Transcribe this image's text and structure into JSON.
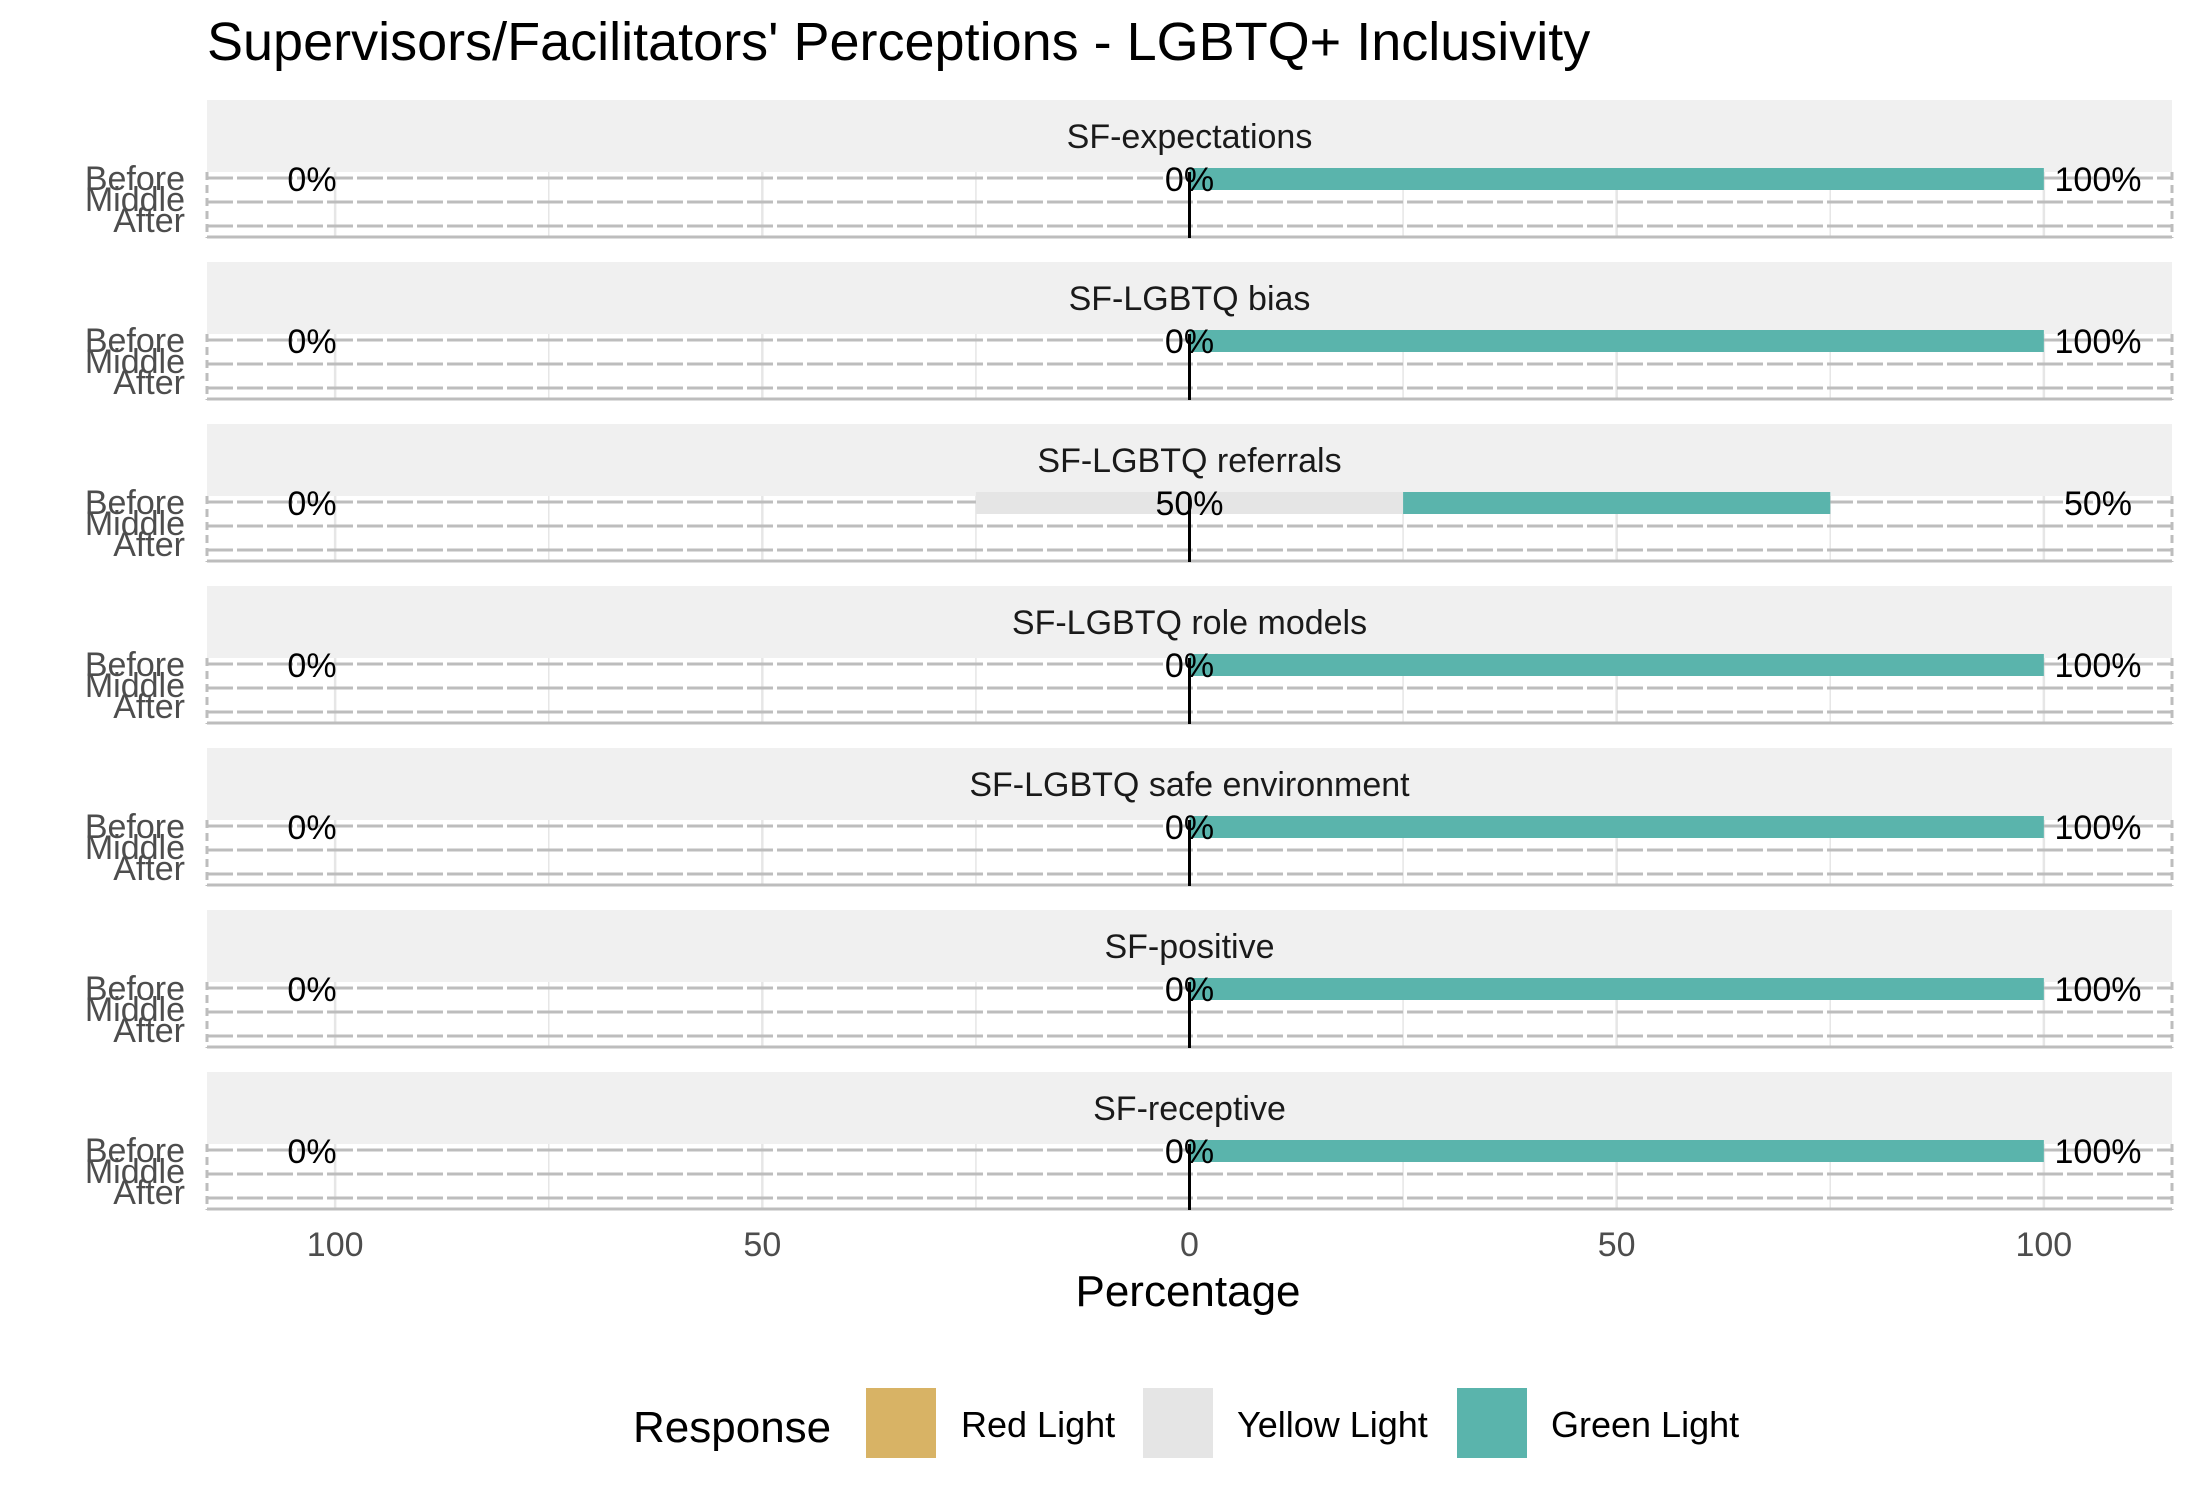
{
  "chart_data": {
    "type": "bar",
    "subtype": "diverging-stacked-bar-faceted",
    "title": "Supervisors/Facilitators' Perceptions - LGBTQ+ Inclusivity",
    "xlabel": "Percentage",
    "ylabel": "",
    "xlim": [
      -115,
      115
    ],
    "x_ticks": [
      -100,
      -50,
      0,
      50,
      100
    ],
    "x_tick_labels": [
      "100",
      "50",
      "0",
      "50",
      "100"
    ],
    "categories": [
      "Before",
      "Middle",
      "After"
    ],
    "legend": {
      "title": "Response",
      "position": "bottom",
      "entries": [
        {
          "name": "Red Light",
          "color": "#D8B365"
        },
        {
          "name": "Yellow Light",
          "color": "#E5E5E5"
        },
        {
          "name": "Green Light",
          "color": "#5AB4AC"
        }
      ]
    },
    "facets": [
      {
        "title": "SF-expectations",
        "series": [
          {
            "name": "Red Light",
            "values": [
              0,
              0,
              0
            ]
          },
          {
            "name": "Yellow Light",
            "values": [
              0,
              0,
              0
            ]
          },
          {
            "name": "Green Light",
            "values": [
              100,
              0,
              0
            ]
          }
        ],
        "labels": {
          "left": "0%",
          "center": "0%",
          "right": "100%"
        }
      },
      {
        "title": "SF-LGBTQ bias",
        "series": [
          {
            "name": "Red Light",
            "values": [
              0,
              0,
              0
            ]
          },
          {
            "name": "Yellow Light",
            "values": [
              0,
              0,
              0
            ]
          },
          {
            "name": "Green Light",
            "values": [
              100,
              0,
              0
            ]
          }
        ],
        "labels": {
          "left": "0%",
          "center": "0%",
          "right": "100%"
        }
      },
      {
        "title": "SF-LGBTQ referrals",
        "series": [
          {
            "name": "Red Light",
            "values": [
              0,
              0,
              0
            ]
          },
          {
            "name": "Yellow Light",
            "values": [
              50,
              0,
              0
            ]
          },
          {
            "name": "Green Light",
            "values": [
              50,
              0,
              0
            ]
          }
        ],
        "labels": {
          "left": "0%",
          "center": "50%",
          "right": "50%"
        }
      },
      {
        "title": "SF-LGBTQ role models",
        "series": [
          {
            "name": "Red Light",
            "values": [
              0,
              0,
              0
            ]
          },
          {
            "name": "Yellow Light",
            "values": [
              0,
              0,
              0
            ]
          },
          {
            "name": "Green Light",
            "values": [
              100,
              0,
              0
            ]
          }
        ],
        "labels": {
          "left": "0%",
          "center": "0%",
          "right": "100%"
        }
      },
      {
        "title": "SF-LGBTQ safe environment",
        "series": [
          {
            "name": "Red Light",
            "values": [
              0,
              0,
              0
            ]
          },
          {
            "name": "Yellow Light",
            "values": [
              0,
              0,
              0
            ]
          },
          {
            "name": "Green Light",
            "values": [
              100,
              0,
              0
            ]
          }
        ],
        "labels": {
          "left": "0%",
          "center": "0%",
          "right": "100%"
        }
      },
      {
        "title": "SF-positive",
        "series": [
          {
            "name": "Red Light",
            "values": [
              0,
              0,
              0
            ]
          },
          {
            "name": "Yellow Light",
            "values": [
              0,
              0,
              0
            ]
          },
          {
            "name": "Green Light",
            "values": [
              100,
              0,
              0
            ]
          }
        ],
        "labels": {
          "left": "0%",
          "center": "0%",
          "right": "100%"
        }
      },
      {
        "title": "SF-receptive",
        "series": [
          {
            "name": "Red Light",
            "values": [
              0,
              0,
              0
            ]
          },
          {
            "name": "Yellow Light",
            "values": [
              0,
              0,
              0
            ]
          },
          {
            "name": "Green Light",
            "values": [
              100,
              0,
              0
            ]
          }
        ],
        "labels": {
          "left": "0%",
          "center": "0%",
          "right": "100%"
        }
      }
    ]
  }
}
